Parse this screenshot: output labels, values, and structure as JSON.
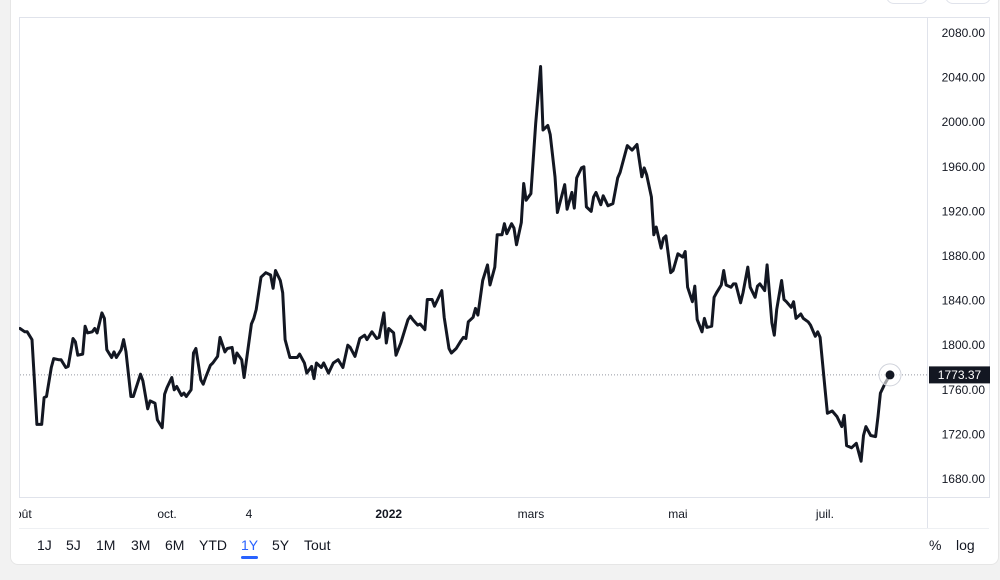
{
  "colors": {
    "line": "#131722",
    "accent": "#2962ff",
    "price_label_bg": "#131722",
    "price_label_text": "#ffffff",
    "axis_text": "#131722",
    "border": "#e0e3eb"
  },
  "range_buttons": [
    {
      "label": "1J",
      "active": false
    },
    {
      "label": "5J",
      "active": false
    },
    {
      "label": "1M",
      "active": false
    },
    {
      "label": "3M",
      "active": false
    },
    {
      "label": "6M",
      "active": false
    },
    {
      "label": "YTD",
      "active": false
    },
    {
      "label": "1Y",
      "active": true
    },
    {
      "label": "5Y",
      "active": false
    },
    {
      "label": "Tout",
      "active": false
    }
  ],
  "scale_buttons": {
    "percent": "%",
    "log": "log"
  },
  "chart_data": {
    "type": "line",
    "grid": false,
    "log_scale": false,
    "ylim": [
      1680,
      2080
    ],
    "yticks": [
      "1680.00",
      "1720.00",
      "1760.00",
      "1800.00",
      "1840.00",
      "1880.00",
      "1920.00",
      "1960.00",
      "2000.00",
      "2040.00",
      "2080.00"
    ],
    "xticks": [
      {
        "date": "2021-08-01",
        "label": "août",
        "bold": false
      },
      {
        "date": "2021-10-01",
        "label": "oct.",
        "bold": false
      },
      {
        "date": "2021-11-04",
        "label": "4",
        "bold": false
      },
      {
        "date": "2022-01-01",
        "label": "2022",
        "bold": true
      },
      {
        "date": "2022-03-01",
        "label": "mars",
        "bold": false
      },
      {
        "date": "2022-05-01",
        "label": "mai",
        "bold": false
      },
      {
        "date": "2022-07-01",
        "label": "juil.",
        "bold": false
      }
    ],
    "last_price": 1773.37,
    "last_price_label": "1773.37",
    "points": [
      [
        "2021-08-01",
        1815
      ],
      [
        "2021-08-03",
        1812
      ],
      [
        "2021-08-04",
        1812
      ],
      [
        "2021-08-06",
        1805
      ],
      [
        "2021-08-07",
        1767
      ],
      [
        "2021-08-08",
        1729
      ],
      [
        "2021-08-10",
        1729
      ],
      [
        "2021-08-11",
        1753
      ],
      [
        "2021-08-12",
        1754
      ],
      [
        "2021-08-14",
        1780
      ],
      [
        "2021-08-15",
        1788
      ],
      [
        "2021-08-17",
        1787
      ],
      [
        "2021-08-18",
        1787
      ],
      [
        "2021-08-20",
        1780
      ],
      [
        "2021-08-21",
        1781
      ],
      [
        "2021-08-23",
        1806
      ],
      [
        "2021-08-24",
        1803
      ],
      [
        "2021-08-25",
        1791
      ],
      [
        "2021-08-27",
        1792
      ],
      [
        "2021-08-28",
        1817
      ],
      [
        "2021-08-29",
        1811
      ],
      [
        "2021-08-31",
        1812
      ],
      [
        "2021-09-01",
        1815
      ],
      [
        "2021-09-02",
        1811
      ],
      [
        "2021-09-04",
        1829
      ],
      [
        "2021-09-05",
        1824
      ],
      [
        "2021-09-06",
        1796
      ],
      [
        "2021-09-08",
        1789
      ],
      [
        "2021-09-09",
        1794
      ],
      [
        "2021-09-10",
        1789
      ],
      [
        "2021-09-12",
        1796
      ],
      [
        "2021-09-13",
        1805
      ],
      [
        "2021-09-14",
        1794
      ],
      [
        "2021-09-16",
        1754
      ],
      [
        "2021-09-17",
        1754
      ],
      [
        "2021-09-20",
        1774
      ],
      [
        "2021-09-21",
        1768
      ],
      [
        "2021-09-23",
        1743
      ],
      [
        "2021-09-24",
        1750
      ],
      [
        "2021-09-26",
        1748
      ],
      [
        "2021-09-27",
        1733
      ],
      [
        "2021-09-29",
        1726
      ],
      [
        "2021-09-30",
        1756
      ],
      [
        "2021-10-01",
        1762
      ],
      [
        "2021-10-03",
        1771
      ],
      [
        "2021-10-04",
        1760
      ],
      [
        "2021-10-05",
        1763
      ],
      [
        "2021-10-07",
        1755
      ],
      [
        "2021-10-08",
        1757
      ],
      [
        "2021-10-09",
        1754
      ],
      [
        "2021-10-11",
        1760
      ],
      [
        "2021-10-12",
        1793
      ],
      [
        "2021-10-13",
        1797
      ],
      [
        "2021-10-15",
        1769
      ],
      [
        "2021-10-16",
        1765
      ],
      [
        "2021-10-17",
        1771
      ],
      [
        "2021-10-19",
        1782
      ],
      [
        "2021-10-20",
        1784
      ],
      [
        "2021-10-22",
        1790
      ],
      [
        "2021-10-23",
        1807
      ],
      [
        "2021-10-25",
        1794
      ],
      [
        "2021-10-26",
        1797
      ],
      [
        "2021-10-28",
        1798
      ],
      [
        "2021-10-29",
        1784
      ],
      [
        "2021-10-30",
        1793
      ],
      [
        "2021-11-01",
        1787
      ],
      [
        "2021-11-02",
        1771
      ],
      [
        "2021-11-05",
        1819
      ],
      [
        "2021-11-06",
        1824
      ],
      [
        "2021-11-07",
        1832
      ],
      [
        "2021-11-09",
        1861
      ],
      [
        "2021-11-11",
        1865
      ],
      [
        "2021-11-13",
        1863
      ],
      [
        "2021-11-14",
        1851
      ],
      [
        "2021-11-15",
        1867
      ],
      [
        "2021-11-17",
        1858
      ],
      [
        "2021-11-18",
        1847
      ],
      [
        "2021-11-19",
        1805
      ],
      [
        "2021-11-21",
        1789
      ],
      [
        "2021-11-24",
        1789
      ],
      [
        "2021-11-25",
        1792
      ],
      [
        "2021-11-27",
        1784
      ],
      [
        "2021-11-28",
        1775
      ],
      [
        "2021-11-30",
        1781
      ],
      [
        "2021-12-01",
        1770
      ],
      [
        "2021-12-02",
        1784
      ],
      [
        "2021-12-04",
        1780
      ],
      [
        "2021-12-05",
        1784
      ],
      [
        "2021-12-07",
        1775
      ],
      [
        "2021-12-09",
        1784
      ],
      [
        "2021-12-11",
        1787
      ],
      [
        "2021-12-13",
        1780
      ],
      [
        "2021-12-15",
        1800
      ],
      [
        "2021-12-16",
        1798
      ],
      [
        "2021-12-18",
        1790
      ],
      [
        "2021-12-20",
        1806
      ],
      [
        "2021-12-22",
        1809
      ],
      [
        "2021-12-23",
        1805
      ],
      [
        "2021-12-25",
        1812
      ],
      [
        "2021-12-27",
        1806
      ],
      [
        "2021-12-28",
        1807
      ],
      [
        "2021-12-30",
        1829
      ],
      [
        "2021-12-31",
        1802
      ],
      [
        "2022-01-01",
        1815
      ],
      [
        "2022-01-03",
        1811
      ],
      [
        "2022-01-04",
        1791
      ],
      [
        "2022-01-06",
        1802
      ],
      [
        "2022-01-09",
        1823
      ],
      [
        "2022-01-10",
        1826
      ],
      [
        "2022-01-11",
        1823
      ],
      [
        "2022-01-13",
        1818
      ],
      [
        "2022-01-14",
        1819
      ],
      [
        "2022-01-16",
        1814
      ],
      [
        "2022-01-17",
        1841
      ],
      [
        "2022-01-19",
        1841
      ],
      [
        "2022-01-20",
        1835
      ],
      [
        "2022-01-23",
        1849
      ],
      [
        "2022-01-24",
        1825
      ],
      [
        "2022-01-26",
        1797
      ],
      [
        "2022-01-27",
        1793
      ],
      [
        "2022-01-29",
        1797
      ],
      [
        "2022-01-31",
        1804
      ],
      [
        "2022-02-01",
        1807
      ],
      [
        "2022-02-02",
        1806
      ],
      [
        "2022-02-03",
        1821
      ],
      [
        "2022-02-05",
        1825
      ],
      [
        "2022-02-06",
        1833
      ],
      [
        "2022-02-07",
        1827
      ],
      [
        "2022-02-09",
        1858
      ],
      [
        "2022-02-11",
        1872
      ],
      [
        "2022-02-12",
        1854
      ],
      [
        "2022-02-14",
        1870
      ],
      [
        "2022-02-15",
        1899
      ],
      [
        "2022-02-17",
        1899
      ],
      [
        "2022-02-18",
        1909
      ],
      [
        "2022-02-19",
        1900
      ],
      [
        "2022-02-21",
        1909
      ],
      [
        "2022-02-22",
        1905
      ],
      [
        "2022-02-23",
        1890
      ],
      [
        "2022-02-25",
        1910
      ],
      [
        "2022-02-26",
        1945
      ],
      [
        "2022-02-27",
        1930
      ],
      [
        "2022-03-01",
        1936
      ],
      [
        "2022-03-03",
        1999
      ],
      [
        "2022-03-05",
        2050
      ],
      [
        "2022-03-06",
        1993
      ],
      [
        "2022-03-08",
        1997
      ],
      [
        "2022-03-09",
        1989
      ],
      [
        "2022-03-11",
        1951
      ],
      [
        "2022-03-12",
        1919
      ],
      [
        "2022-03-15",
        1944
      ],
      [
        "2022-03-16",
        1922
      ],
      [
        "2022-03-18",
        1937
      ],
      [
        "2022-03-19",
        1923
      ],
      [
        "2022-03-20",
        1950
      ],
      [
        "2022-03-22",
        1959
      ],
      [
        "2022-03-23",
        1960
      ],
      [
        "2022-03-24",
        1924
      ],
      [
        "2022-03-26",
        1920
      ],
      [
        "2022-03-27",
        1933
      ],
      [
        "2022-03-28",
        1937
      ],
      [
        "2022-03-30",
        1926
      ],
      [
        "2022-03-31",
        1934
      ],
      [
        "2022-04-02",
        1925
      ],
      [
        "2022-04-04",
        1927
      ],
      [
        "2022-04-06",
        1950
      ],
      [
        "2022-04-07",
        1955
      ],
      [
        "2022-04-10",
        1979
      ],
      [
        "2022-04-12",
        1975
      ],
      [
        "2022-04-14",
        1980
      ],
      [
        "2022-04-16",
        1951
      ],
      [
        "2022-04-17",
        1959
      ],
      [
        "2022-04-18",
        1953
      ],
      [
        "2022-04-20",
        1933
      ],
      [
        "2022-04-21",
        1899
      ],
      [
        "2022-04-22",
        1906
      ],
      [
        "2022-04-24",
        1887
      ],
      [
        "2022-04-25",
        1896
      ],
      [
        "2022-04-26",
        1898
      ],
      [
        "2022-04-28",
        1865
      ],
      [
        "2022-04-29",
        1867
      ],
      [
        "2022-05-01",
        1882
      ],
      [
        "2022-05-03",
        1879
      ],
      [
        "2022-05-04",
        1884
      ],
      [
        "2022-05-05",
        1852
      ],
      [
        "2022-05-07",
        1839
      ],
      [
        "2022-05-08",
        1853
      ],
      [
        "2022-05-09",
        1823
      ],
      [
        "2022-05-11",
        1812
      ],
      [
        "2022-05-12",
        1824
      ],
      [
        "2022-05-13",
        1816
      ],
      [
        "2022-05-15",
        1817
      ],
      [
        "2022-05-16",
        1843
      ],
      [
        "2022-05-17",
        1847
      ],
      [
        "2022-05-19",
        1854
      ],
      [
        "2022-05-20",
        1867
      ],
      [
        "2022-05-21",
        1854
      ],
      [
        "2022-05-23",
        1852
      ],
      [
        "2022-05-24",
        1855
      ],
      [
        "2022-05-25",
        1855
      ],
      [
        "2022-05-27",
        1838
      ],
      [
        "2022-05-28",
        1847
      ],
      [
        "2022-05-30",
        1870
      ],
      [
        "2022-05-31",
        1852
      ],
      [
        "2022-06-02",
        1843
      ],
      [
        "2022-06-03",
        1853
      ],
      [
        "2022-06-04",
        1855
      ],
      [
        "2022-06-06",
        1849
      ],
      [
        "2022-06-07",
        1872
      ],
      [
        "2022-06-09",
        1820
      ],
      [
        "2022-06-10",
        1809
      ],
      [
        "2022-06-11",
        1832
      ],
      [
        "2022-06-13",
        1858
      ],
      [
        "2022-06-14",
        1841
      ],
      [
        "2022-06-15",
        1839
      ],
      [
        "2022-06-17",
        1834
      ],
      [
        "2022-06-18",
        1839
      ],
      [
        "2022-06-19",
        1824
      ],
      [
        "2022-06-21",
        1828
      ],
      [
        "2022-06-22",
        1824
      ],
      [
        "2022-06-24",
        1821
      ],
      [
        "2022-06-25",
        1818
      ],
      [
        "2022-06-27",
        1808
      ],
      [
        "2022-06-28",
        1812
      ],
      [
        "2022-06-29",
        1807
      ],
      [
        "2022-07-01",
        1762
      ],
      [
        "2022-07-02",
        1739
      ],
      [
        "2022-07-04",
        1741
      ],
      [
        "2022-07-06",
        1736
      ],
      [
        "2022-07-08",
        1727
      ],
      [
        "2022-07-09",
        1737
      ],
      [
        "2022-07-10",
        1710
      ],
      [
        "2022-07-12",
        1708
      ],
      [
        "2022-07-14",
        1712
      ],
      [
        "2022-07-16",
        1696
      ],
      [
        "2022-07-17",
        1719
      ],
      [
        "2022-07-18",
        1727
      ],
      [
        "2022-07-20",
        1719
      ],
      [
        "2022-07-22",
        1718
      ],
      [
        "2022-07-23",
        1736
      ],
      [
        "2022-07-24",
        1757
      ],
      [
        "2022-07-26",
        1766
      ],
      [
        "2022-07-28",
        1773.37
      ]
    ]
  }
}
